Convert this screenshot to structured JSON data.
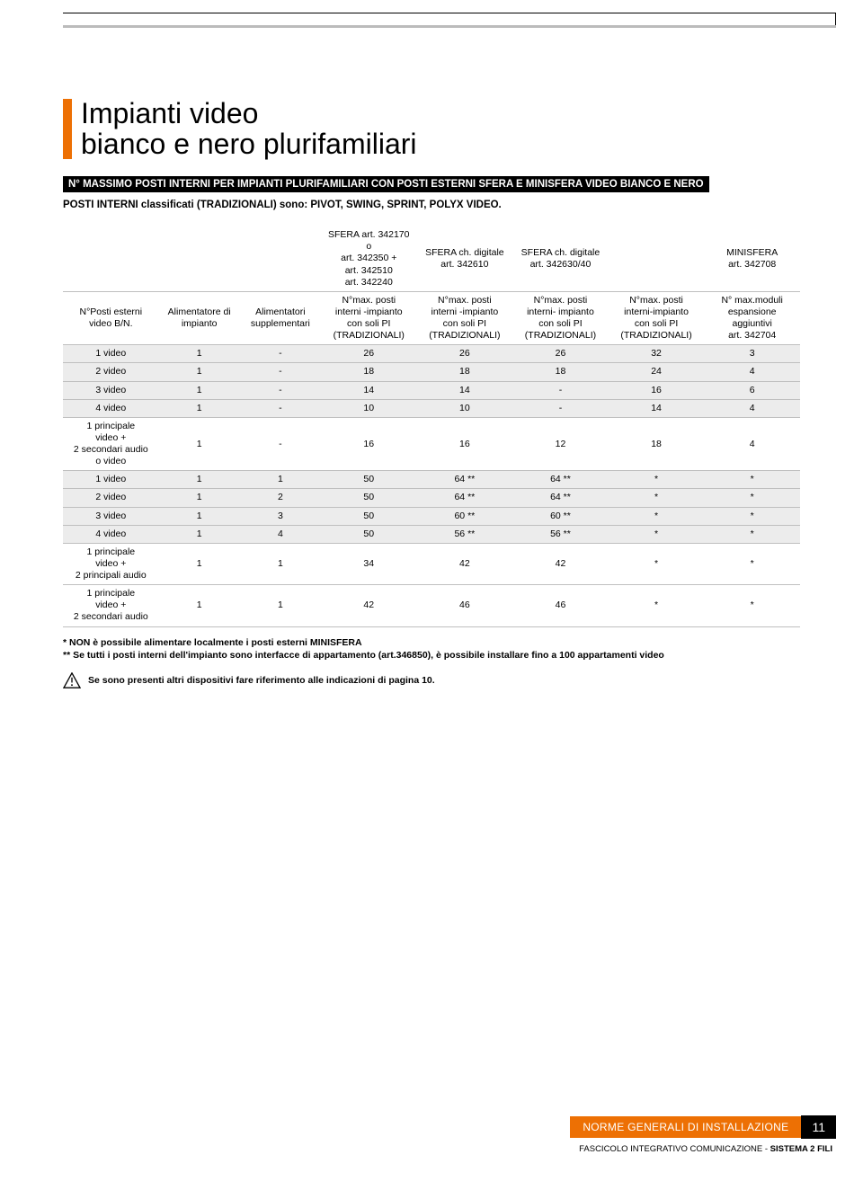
{
  "page": {
    "title_line1": "Impianti video",
    "title_line2": "bianco e nero plurifamiliari",
    "subtitle_bar": "N° MASSIMO POSTI INTERNI PER IMPIANTI PLURIFAMILIARI CON POSTI ESTERNI SFERA E MINISFERA VIDEO BIANCO E NERO",
    "classified": "POSTI INTERNI classificati (TRADIZIONALI) sono: PIVOT, SWING, SPRINT, POLYX VIDEO.",
    "colors": {
      "accent": "#ed7004",
      "band_gray": "#ececec",
      "border_gray": "#bfbfbf",
      "text": "#000000",
      "bg": "#ffffff"
    }
  },
  "table": {
    "top_headers": {
      "c4": "SFERA art. 342170\no\nart. 342350 +\nart. 342510\nart. 342240",
      "c5": "SFERA ch. digitale\nart. 342610",
      "c6": "SFERA ch. digitale\nart. 342630/40",
      "c7": "",
      "c8": "MINISFERA\nart. 342708"
    },
    "row_headers": {
      "c1": "N°Posti esterni\nvideo B/N.",
      "c2": "Alimentatore di\nimpianto",
      "c3": "Alimentatori\nsupplementari",
      "c4": "N°max. posti\ninterni -impianto\ncon soli PI\n(TRADIZIONALI)",
      "c5": "N°max. posti\ninterni -impianto\ncon soli PI\n(TRADIZIONALI)",
      "c6": "N°max. posti\ninterni- impianto\ncon soli PI\n(TRADIZIONALI)",
      "c7": "N°max. posti\ninterni-impianto\ncon soli PI\n(TRADIZIONALI)",
      "c8": "N° max.moduli\nespansione\naggiuntivi\nart. 342704"
    },
    "rows": [
      {
        "band": "gray",
        "cells": [
          "1 video",
          "1",
          "-",
          "26",
          "26",
          "26",
          "32",
          "3"
        ]
      },
      {
        "band": "gray",
        "cells": [
          "2 video",
          "1",
          "-",
          "18",
          "18",
          "18",
          "24",
          "4"
        ]
      },
      {
        "band": "gray",
        "cells": [
          "3 video",
          "1",
          "-",
          "14",
          "14",
          "-",
          "16",
          "6"
        ]
      },
      {
        "band": "gray",
        "cells": [
          "4 video",
          "1",
          "-",
          "10",
          "10",
          "-",
          "14",
          "4"
        ]
      },
      {
        "band": "white",
        "cells": [
          "1 principale\nvideo +\n2 secondari audio\no video",
          "1",
          "-",
          "16",
          "16",
          "12",
          "18",
          "4"
        ]
      },
      {
        "band": "gray",
        "cells": [
          "1 video",
          "1",
          "1",
          "50",
          "64 **",
          "64 **",
          "*",
          "*"
        ]
      },
      {
        "band": "gray",
        "cells": [
          "2 video",
          "1",
          "2",
          "50",
          "64 **",
          "64 **",
          "*",
          "*"
        ]
      },
      {
        "band": "gray",
        "cells": [
          "3 video",
          "1",
          "3",
          "50",
          "60 **",
          "60 **",
          "*",
          "*"
        ]
      },
      {
        "band": "gray",
        "cells": [
          "4 video",
          "1",
          "4",
          "50",
          "56 **",
          "56 **",
          "*",
          "*"
        ]
      },
      {
        "band": "white",
        "cells": [
          "1 principale\nvideo +\n2 principali audio",
          "1",
          "1",
          "34",
          "42",
          "42",
          "*",
          "*"
        ]
      },
      {
        "band": "white",
        "cells": [
          "1 principale\nvideo +\n2 secondari audio",
          "1",
          "1",
          "42",
          "46",
          "46",
          "*",
          "*"
        ]
      }
    ]
  },
  "notes": {
    "star1": "* NON è possibile alimentare localmente i posti esterni MINISFERA",
    "star2": "** Se tutti i posti interni dell'impianto sono interfacce di appartamento (art.346850), è possibile installare fino a 100 appartamenti video",
    "warning": "Se sono presenti altri dispositivi fare riferimento alle indicazioni di pagina 10."
  },
  "footer": {
    "orange_text": "NORME GENERALI DI INSTALLAZIONE",
    "page_number": "11",
    "subtext_prefix": "FASCICOLO INTEGRATIVO COMUNICAZIONE - ",
    "subtext_bold": "SISTEMA 2 FILI"
  }
}
